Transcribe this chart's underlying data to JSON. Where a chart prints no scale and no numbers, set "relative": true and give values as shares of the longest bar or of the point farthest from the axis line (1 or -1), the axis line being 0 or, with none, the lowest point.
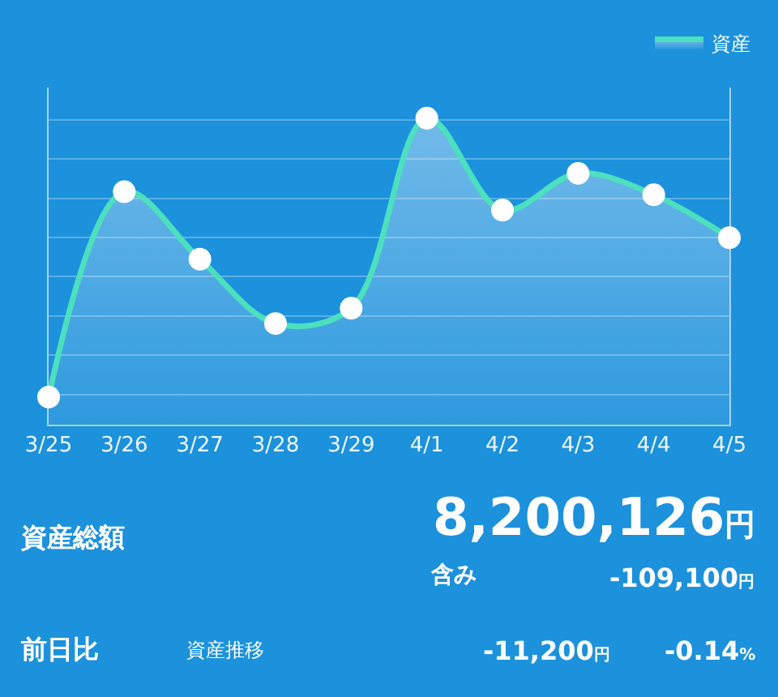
{
  "chart_data": {
    "type": "area",
    "relative": true,
    "categories": [
      "3/25",
      "3/26",
      "3/27",
      "3/28",
      "3/29",
      "4/1",
      "4/2",
      "4/3",
      "4/4",
      "4/5"
    ],
    "series": [
      {
        "name": "資産",
        "color": "#4ce0be",
        "values": [
          0.09,
          0.76,
          0.54,
          0.33,
          0.38,
          1,
          0.7,
          0.82,
          0.75,
          0.61
        ]
      }
    ],
    "marker": "circle",
    "grid": "y",
    "legend": "top right",
    "annotations": [
      "資産総額",
      "8,200,126円",
      "含み",
      "-109,100円",
      "前日比",
      "資産推移",
      "-11,200円",
      "-0.14%"
    ]
  }
}
